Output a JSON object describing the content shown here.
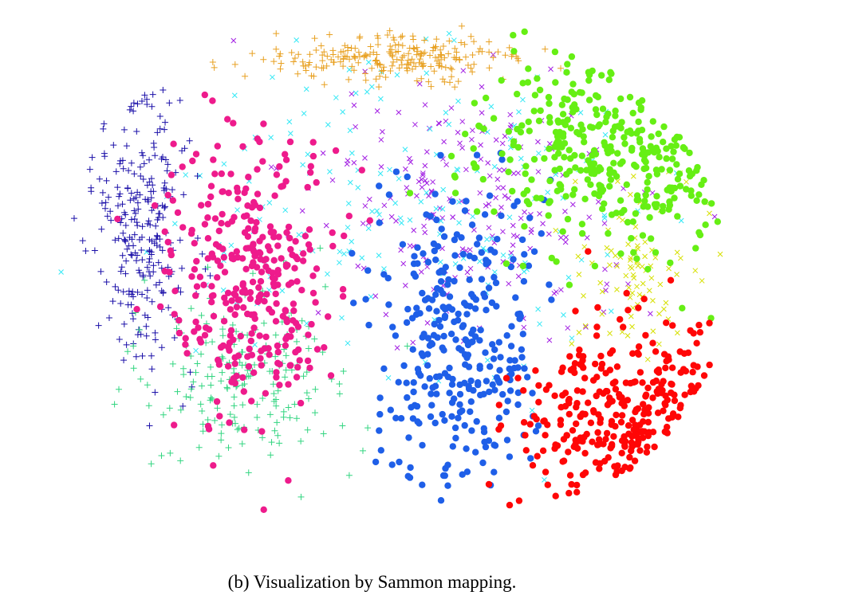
{
  "caption": "(b) Visualization by Sammon mapping.",
  "chart_data": {
    "type": "scatter",
    "title": "",
    "xlabel": "",
    "ylabel": "",
    "axes_visible": false,
    "grid": false,
    "legend": "none",
    "xlim": [
      0,
      1
    ],
    "ylim": [
      0,
      1
    ],
    "series": [
      {
        "color": "#e8a020",
        "marker": "plus",
        "cluster": {
          "cx": 0.5,
          "cy": 0.9,
          "rx": 0.17,
          "ry": 0.04,
          "n": 230
        }
      },
      {
        "color": "#1a0fa8",
        "marker": "plus",
        "cluster": {
          "cx": 0.14,
          "cy": 0.6,
          "rx": 0.07,
          "ry": 0.22,
          "n": 260
        }
      },
      {
        "color": "#ee1b8c",
        "marker": "dot",
        "cluster": {
          "cx": 0.3,
          "cy": 0.5,
          "rx": 0.11,
          "ry": 0.24,
          "n": 340
        }
      },
      {
        "color": "#1f5fe8",
        "marker": "dot",
        "cluster": {
          "cx": 0.6,
          "cy": 0.4,
          "rx": 0.11,
          "ry": 0.24,
          "n": 320
        }
      },
      {
        "color": "#66ef14",
        "marker": "dot",
        "cluster": {
          "cx": 0.84,
          "cy": 0.72,
          "rx": 0.18,
          "ry": 0.16,
          "n": 340
        }
      },
      {
        "color": "#ff0606",
        "marker": "dot",
        "cluster": {
          "cx": 0.86,
          "cy": 0.23,
          "rx": 0.16,
          "ry": 0.17,
          "n": 300
        }
      },
      {
        "color": "#32d580",
        "marker": "plus",
        "cluster": {
          "cx": 0.28,
          "cy": 0.32,
          "rx": 0.14,
          "ry": 0.15,
          "n": 200
        }
      },
      {
        "color": "#a21ee3",
        "marker": "cross",
        "cluster": {
          "cx": 0.62,
          "cy": 0.62,
          "rx": 0.2,
          "ry": 0.22,
          "n": 220
        }
      },
      {
        "color": "#33e8f5",
        "marker": "cross",
        "cluster": {
          "cx": 0.52,
          "cy": 0.62,
          "rx": 0.3,
          "ry": 0.28,
          "n": 180
        }
      },
      {
        "color": "#d6e000",
        "marker": "cross",
        "cluster": {
          "cx": 0.86,
          "cy": 0.52,
          "rx": 0.1,
          "ry": 0.14,
          "n": 90
        }
      }
    ]
  }
}
